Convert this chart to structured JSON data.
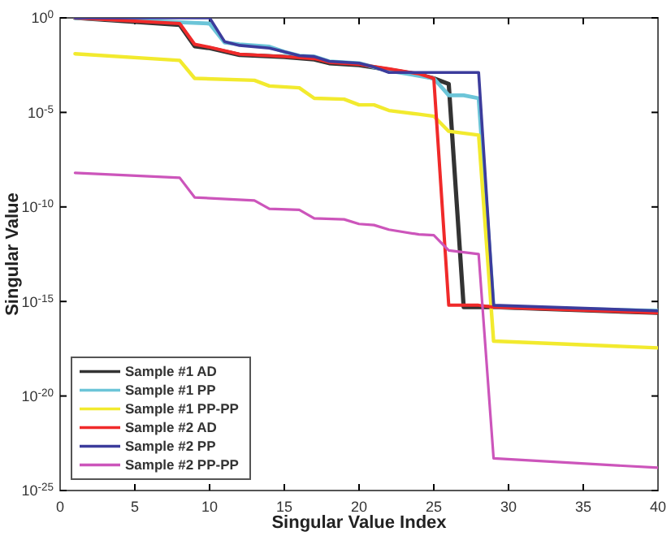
{
  "chart_data": {
    "type": "line",
    "xlabel": "Singular Value Index",
    "ylabel": "Singular Value",
    "log": true,
    "grid": false,
    "legend": "bottom left",
    "xlim": [
      0,
      40
    ],
    "xticks": [
      0,
      5,
      10,
      15,
      20,
      25,
      30,
      35,
      40
    ],
    "ylim": [
      1e-25,
      1
    ],
    "yticks": [
      {
        "value": 1e-25,
        "label": "10$^{-25}$"
      },
      {
        "value": 1e-20,
        "label": "10$^{-20}$"
      },
      {
        "value": 1e-15,
        "label": "10$^{-15}$"
      },
      {
        "value": 1e-10,
        "label": "10$^{-10}$"
      },
      {
        "value": 1e-05,
        "label": "10$^{-5}$"
      },
      {
        "value": 1,
        "label": "10$^{0}$"
      }
    ],
    "series": [
      {
        "name": "Sample #1 AD",
        "color": "#333333",
        "x": [
          1,
          8,
          9,
          10,
          12,
          15,
          17,
          18,
          20,
          22,
          24,
          25,
          26,
          27,
          29,
          40
        ],
        "values": [
          1,
          0.43,
          0.032,
          0.025,
          0.011,
          0.0085,
          0.0063,
          0.004,
          0.0032,
          0.0018,
          0.001,
          0.00063,
          0.00032,
          5e-16,
          5e-16,
          2.5e-16
        ]
      },
      {
        "name": "Sample #1 PP",
        "color": "#6cc5d8",
        "x": [
          1,
          10,
          11,
          12,
          14,
          15,
          16,
          17,
          18,
          20,
          21,
          22,
          25,
          26,
          27,
          28,
          29,
          40
        ],
        "values": [
          1,
          0.5,
          0.05,
          0.04,
          0.03,
          0.016,
          0.01,
          0.009,
          0.005,
          0.004,
          0.0025,
          0.0016,
          0.00063,
          8e-05,
          8e-05,
          5.6e-05,
          5e-16,
          3.2e-16
        ]
      },
      {
        "name": "Sample #1 PP-PP",
        "color": "#f2ea2e",
        "x": [
          1,
          8,
          9,
          13,
          14,
          16,
          17,
          19,
          20,
          21,
          22,
          24,
          25,
          26,
          28,
          29,
          40
        ],
        "values": [
          0.0126,
          0.0056,
          0.00063,
          0.0005,
          0.00025,
          0.0002,
          5.6e-05,
          5e-05,
          2.5e-05,
          2.5e-05,
          1.26e-05,
          8e-06,
          6.3e-06,
          1e-06,
          6.3e-07,
          8e-18,
          3.5e-18
        ]
      },
      {
        "name": "Sample #2 AD",
        "color": "#f02a2a",
        "x": [
          1,
          8,
          9,
          10,
          12,
          15,
          17,
          18,
          20,
          22,
          24,
          25,
          26,
          28,
          29,
          40
        ],
        "values": [
          1,
          0.5,
          0.04,
          0.028,
          0.012,
          0.009,
          0.007,
          0.0045,
          0.0035,
          0.002,
          0.0011,
          0.00063,
          6.3e-16,
          6.3e-16,
          5e-16,
          2.5e-16
        ]
      },
      {
        "name": "Sample #2 PP",
        "color": "#3c3c9c",
        "x": [
          1,
          10,
          11,
          12,
          14,
          15,
          16,
          17,
          18,
          20,
          21,
          22,
          28,
          29,
          40
        ],
        "values": [
          1,
          1,
          0.056,
          0.035,
          0.025,
          0.016,
          0.01,
          0.009,
          0.005,
          0.004,
          0.0025,
          0.0013,
          0.0013,
          6.3e-16,
          3.2e-16
        ]
      },
      {
        "name": "Sample #2 PP-PP",
        "color": "#cc55bb",
        "x": [
          1,
          8,
          9,
          13,
          14,
          16,
          17,
          19,
          20,
          21,
          22,
          24,
          25,
          26,
          28,
          29,
          40
        ],
        "values": [
          6.3e-09,
          3.5e-09,
          3.2e-10,
          2.2e-10,
          8e-11,
          7e-11,
          2.5e-11,
          2.2e-11,
          1.26e-11,
          1.1e-11,
          6.3e-12,
          3.5e-12,
          3.2e-12,
          5e-13,
          3.2e-13,
          5e-24,
          1.6e-24
        ]
      }
    ]
  }
}
